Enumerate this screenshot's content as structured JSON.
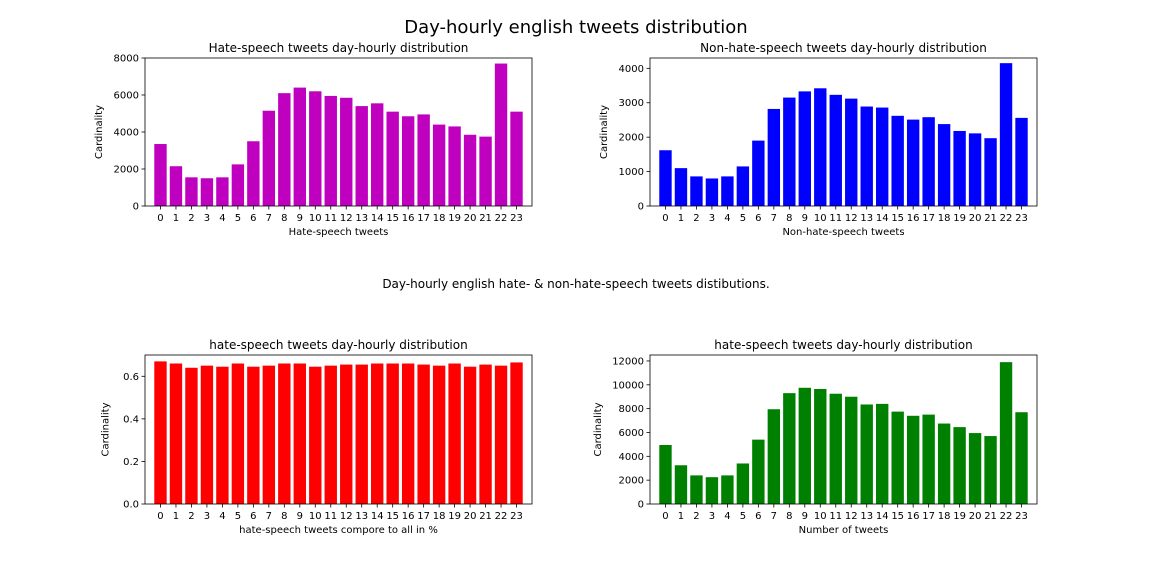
{
  "figure": {
    "suptitle": "Day-hourly english tweets distribution",
    "middle_text": "Day-hourly english hate- & non-hate-speech tweets distibutions."
  },
  "chart_data": [
    {
      "type": "bar",
      "title": "Hate-speech tweets day-hourly distribution",
      "xlabel": "Hate-speech tweets",
      "ylabel": "Cardinality",
      "color": "#bf00bf",
      "categories": [
        "0",
        "1",
        "2",
        "3",
        "4",
        "5",
        "6",
        "7",
        "8",
        "9",
        "10",
        "11",
        "12",
        "13",
        "14",
        "15",
        "16",
        "17",
        "18",
        "19",
        "20",
        "21",
        "22",
        "23"
      ],
      "values": [
        3350,
        2150,
        1550,
        1500,
        1550,
        2250,
        3500,
        5150,
        6100,
        6400,
        6200,
        5950,
        5850,
        5400,
        5550,
        5100,
        4850,
        4950,
        4400,
        4300,
        3850,
        3750,
        7700,
        5100
      ],
      "ylim": [
        0,
        8000
      ],
      "yticks": [
        0,
        2000,
        4000,
        6000,
        8000
      ],
      "grid": false
    },
    {
      "type": "bar",
      "title": "Non-hate-speech tweets day-hourly distribution",
      "xlabel": "Non-hate-speech tweets",
      "ylabel": "Cardinality",
      "color": "#0000ff",
      "categories": [
        "0",
        "1",
        "2",
        "3",
        "4",
        "5",
        "6",
        "7",
        "8",
        "9",
        "10",
        "11",
        "12",
        "13",
        "14",
        "15",
        "16",
        "17",
        "18",
        "19",
        "20",
        "21",
        "22",
        "23"
      ],
      "values": [
        1620,
        1100,
        860,
        800,
        860,
        1150,
        1900,
        2820,
        3150,
        3330,
        3420,
        3230,
        3120,
        2890,
        2860,
        2620,
        2510,
        2580,
        2380,
        2180,
        2110,
        1970,
        4150,
        2560
      ],
      "ylim": [
        0,
        4300
      ],
      "yticks": [
        0,
        1000,
        2000,
        3000,
        4000
      ],
      "grid": false
    },
    {
      "type": "bar",
      "title": "hate-speech tweets day-hourly distribution",
      "xlabel": "hate-speech tweets compore to all in %",
      "ylabel": "Cardinality",
      "color": "#ff0000",
      "categories": [
        "0",
        "1",
        "2",
        "3",
        "4",
        "5",
        "6",
        "7",
        "8",
        "9",
        "10",
        "11",
        "12",
        "13",
        "14",
        "15",
        "16",
        "17",
        "18",
        "19",
        "20",
        "21",
        "22",
        "23"
      ],
      "values": [
        0.67,
        0.66,
        0.64,
        0.65,
        0.645,
        0.66,
        0.645,
        0.65,
        0.66,
        0.66,
        0.645,
        0.65,
        0.655,
        0.655,
        0.66,
        0.66,
        0.66,
        0.655,
        0.65,
        0.66,
        0.645,
        0.655,
        0.65,
        0.665
      ],
      "ylim": [
        0,
        0.7
      ],
      "yticks": [
        0.0,
        0.2,
        0.4,
        0.6
      ],
      "ytick_labels": [
        "0.0",
        "0.2",
        "0.4",
        "0.6"
      ],
      "grid": false
    },
    {
      "type": "bar",
      "title": "hate-speech tweets day-hourly distribution",
      "xlabel": "Number of tweets",
      "ylabel": "Cardinality",
      "color": "#008000",
      "categories": [
        "0",
        "1",
        "2",
        "3",
        "4",
        "5",
        "6",
        "7",
        "8",
        "9",
        "10",
        "11",
        "12",
        "13",
        "14",
        "15",
        "16",
        "17",
        "18",
        "19",
        "20",
        "21",
        "22",
        "23"
      ],
      "values": [
        4950,
        3250,
        2400,
        2250,
        2400,
        3400,
        5400,
        7950,
        9300,
        9750,
        9650,
        9250,
        9000,
        8350,
        8400,
        7750,
        7400,
        7500,
        6750,
        6450,
        5950,
        5700,
        11900,
        7700
      ],
      "ylim": [
        0,
        12500
      ],
      "yticks": [
        0,
        2000,
        4000,
        6000,
        8000,
        10000,
        12000
      ],
      "grid": false
    }
  ]
}
